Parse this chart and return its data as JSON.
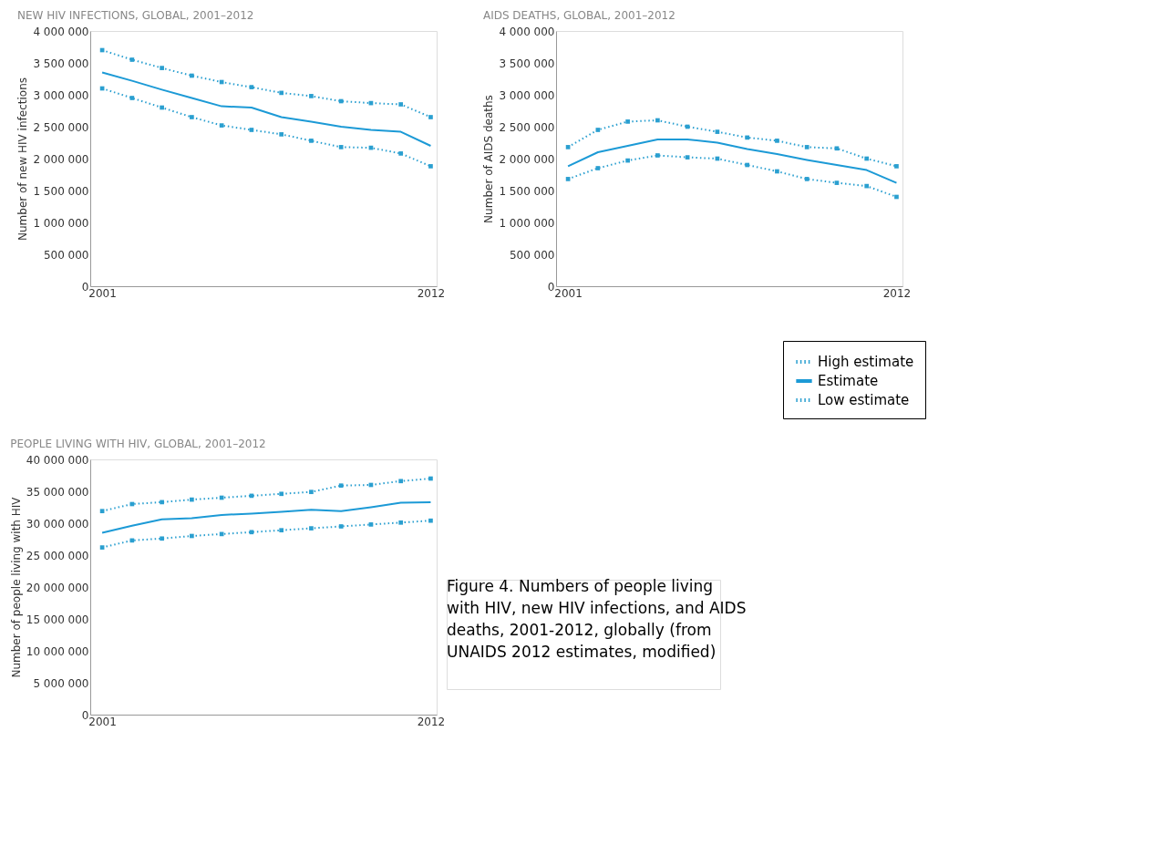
{
  "chart_data": [
    {
      "type": "line",
      "title": "NEW HIV INFECTIONS, GLOBAL, 2001–2012",
      "ylabel": "Number of new HIV infections",
      "x": [
        2001,
        2002,
        2003,
        2004,
        2005,
        2006,
        2007,
        2008,
        2009,
        2010,
        2011,
        2012
      ],
      "xlim": [
        2000.6,
        2012.2
      ],
      "xticks": [
        2001,
        2012
      ],
      "ylim": [
        0,
        4000000
      ],
      "yticks": [
        {
          "value": 0,
          "label": "0"
        },
        {
          "value": 500000,
          "label": "500 000"
        },
        {
          "value": 1000000,
          "label": "1 000 000"
        },
        {
          "value": 1500000,
          "label": "1 500 000"
        },
        {
          "value": 2000000,
          "label": "2 000 000"
        },
        {
          "value": 2500000,
          "label": "2 500 000"
        },
        {
          "value": 3000000,
          "label": "3 000 000"
        },
        {
          "value": 3500000,
          "label": "3 500 000"
        },
        {
          "value": 4000000,
          "label": "4 000 000"
        }
      ],
      "series": [
        {
          "name": "High estimate",
          "color": "#2a9fd0",
          "line_style": "dotted",
          "marker": "square",
          "values": [
            3700000,
            3550000,
            3420000,
            3300000,
            3200000,
            3120000,
            3030000,
            2980000,
            2900000,
            2870000,
            2850000,
            2650000
          ]
        },
        {
          "name": "Estimate",
          "color": "#1c9ad6",
          "line_style": "solid",
          "values": [
            3350000,
            3220000,
            3080000,
            2950000,
            2820000,
            2800000,
            2650000,
            2580000,
            2500000,
            2450000,
            2420000,
            2200000
          ]
        },
        {
          "name": "Low estimate",
          "color": "#2a9fd0",
          "line_style": "dotted",
          "marker": "square",
          "values": [
            3100000,
            2950000,
            2800000,
            2650000,
            2520000,
            2450000,
            2380000,
            2280000,
            2180000,
            2170000,
            2080000,
            1880000
          ]
        }
      ],
      "legend": "bottom right",
      "grid": false
    },
    {
      "type": "line",
      "title": "AIDS DEATHS, GLOBAL, 2001–2012",
      "ylabel": "Number of AIDS deaths",
      "x": [
        2001,
        2002,
        2003,
        2004,
        2005,
        2006,
        2007,
        2008,
        2009,
        2010,
        2011,
        2012
      ],
      "xlim": [
        2000.6,
        2012.2
      ],
      "xticks": [
        2001,
        2012
      ],
      "ylim": [
        0,
        4000000
      ],
      "yticks": [
        {
          "value": 0,
          "label": "0"
        },
        {
          "value": 500000,
          "label": "500 000"
        },
        {
          "value": 1000000,
          "label": "1 000 000"
        },
        {
          "value": 1500000,
          "label": "1 500 000"
        },
        {
          "value": 2000000,
          "label": "2 000 000"
        },
        {
          "value": 2500000,
          "label": "2 500 000"
        },
        {
          "value": 3000000,
          "label": "3 000 000"
        },
        {
          "value": 3500000,
          "label": "3 500 000"
        },
        {
          "value": 4000000,
          "label": "4 000 000"
        }
      ],
      "series": [
        {
          "name": "High estimate",
          "color": "#2a9fd0",
          "line_style": "dotted",
          "marker": "square",
          "values": [
            2180000,
            2450000,
            2580000,
            2600000,
            2500000,
            2420000,
            2330000,
            2280000,
            2180000,
            2160000,
            2000000,
            1880000
          ]
        },
        {
          "name": "Estimate",
          "color": "#1c9ad6",
          "line_style": "solid",
          "values": [
            1880000,
            2100000,
            2200000,
            2300000,
            2300000,
            2250000,
            2150000,
            2070000,
            1980000,
            1900000,
            1820000,
            1620000
          ]
        },
        {
          "name": "Low estimate",
          "color": "#2a9fd0",
          "line_style": "dotted",
          "marker": "square",
          "values": [
            1680000,
            1850000,
            1970000,
            2050000,
            2020000,
            2000000,
            1900000,
            1800000,
            1680000,
            1620000,
            1570000,
            1400000
          ]
        }
      ],
      "legend": false,
      "grid": false
    },
    {
      "type": "line",
      "title": "PEOPLE LIVING WITH HIV, GLOBAL, 2001–2012",
      "ylabel": "Number of people living with HIV",
      "x": [
        2001,
        2002,
        2003,
        2004,
        2005,
        2006,
        2007,
        2008,
        2009,
        2010,
        2011,
        2012
      ],
      "xlim": [
        2000.6,
        2012.2
      ],
      "xticks": [
        2001,
        2012
      ],
      "ylim": [
        0,
        40000000
      ],
      "yticks": [
        {
          "value": 0,
          "label": "0"
        },
        {
          "value": 5000000,
          "label": "5 000 000"
        },
        {
          "value": 10000000,
          "label": "10 000 000"
        },
        {
          "value": 15000000,
          "label": "15 000 000"
        },
        {
          "value": 20000000,
          "label": "20 000 000"
        },
        {
          "value": 25000000,
          "label": "25 000 000"
        },
        {
          "value": 30000000,
          "label": "30 000 000"
        },
        {
          "value": 35000000,
          "label": "35 000 000"
        },
        {
          "value": 40000000,
          "label": "40 000 000"
        }
      ],
      "series": [
        {
          "name": "High estimate",
          "color": "#2a9fd0",
          "line_style": "dotted",
          "marker": "square",
          "values": [
            31900000,
            33000000,
            33300000,
            33700000,
            34000000,
            34300000,
            34600000,
            34900000,
            35900000,
            36000000,
            36600000,
            37000000
          ]
        },
        {
          "name": "Estimate",
          "color": "#1c9ad6",
          "line_style": "solid",
          "values": [
            28500000,
            29600000,
            30600000,
            30800000,
            31300000,
            31500000,
            31800000,
            32100000,
            31900000,
            32500000,
            33200000,
            33300000
          ]
        },
        {
          "name": "Low estimate",
          "color": "#2a9fd0",
          "line_style": "dotted",
          "marker": "square",
          "values": [
            26200000,
            27300000,
            27600000,
            28000000,
            28300000,
            28600000,
            28900000,
            29200000,
            29500000,
            29800000,
            30100000,
            30400000
          ]
        }
      ],
      "legend": false,
      "grid": false,
      "annotations": [
        "Figure 4. Numbers of people living with HIV, new HIV infections, and AIDS deaths, 2001-2012, globally (from UNAIDS 2012 estimates, modified)"
      ]
    }
  ]
}
